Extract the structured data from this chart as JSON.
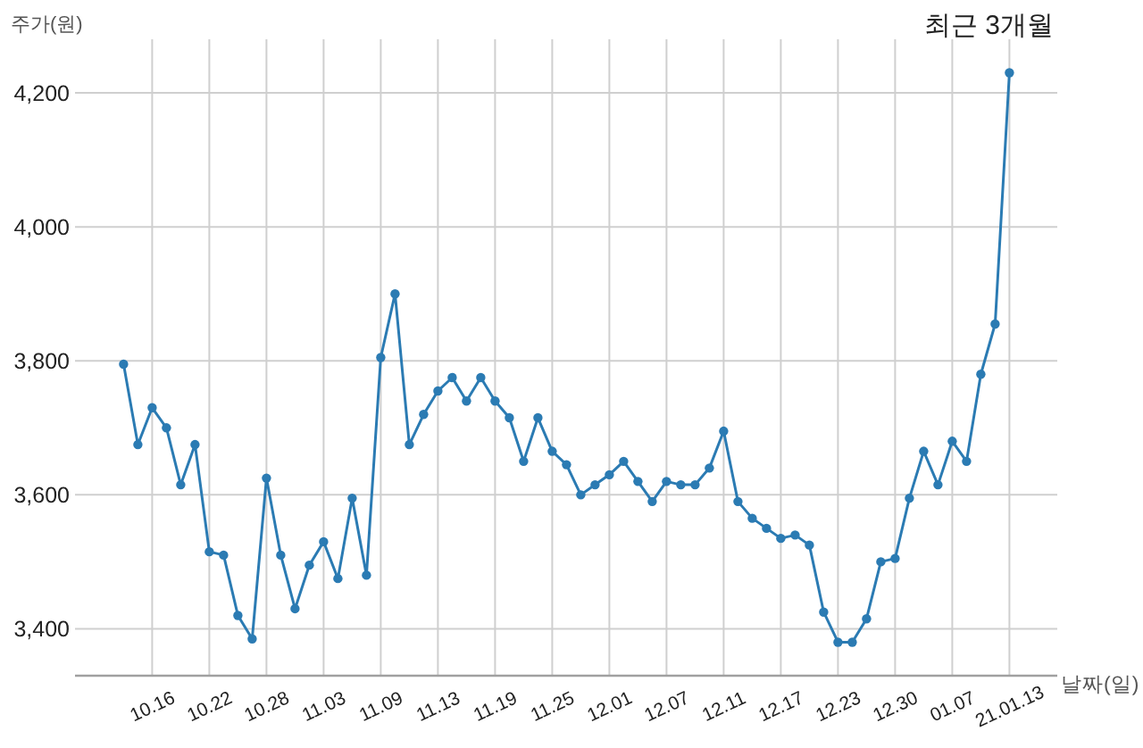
{
  "chart_data": {
    "type": "line",
    "title": "최근 3개월",
    "xlabel": "날짜(일)",
    "ylabel": "주가(원)",
    "categories": [
      null,
      null,
      "10.16",
      null,
      null,
      null,
      "10.22",
      null,
      null,
      null,
      "10.28",
      null,
      null,
      null,
      "11.03",
      null,
      null,
      null,
      "11.09",
      null,
      null,
      null,
      "11.13",
      null,
      null,
      null,
      "11.19",
      null,
      null,
      null,
      "11.25",
      null,
      null,
      null,
      "12.01",
      null,
      null,
      null,
      "12.07",
      null,
      null,
      null,
      "12.11",
      null,
      null,
      null,
      "12.17",
      null,
      null,
      null,
      "12.23",
      null,
      null,
      null,
      "12.30",
      null,
      null,
      null,
      "01.07",
      null,
      null,
      null,
      "21.01.13"
    ],
    "series": [
      {
        "color": "#2b7bb3",
        "values": [
          3795,
          3675,
          3730,
          3700,
          3615,
          3675,
          3515,
          3510,
          3420,
          3385,
          3625,
          3510,
          3430,
          3495,
          3530,
          3475,
          3595,
          3480,
          3805,
          3900,
          3675,
          3720,
          3755,
          3775,
          3740,
          3775,
          3740,
          3715,
          3650,
          3715,
          3665,
          3645,
          3600,
          3615,
          3630,
          3650,
          3620,
          3590,
          3620,
          3615,
          3615,
          3640,
          3695,
          3590,
          3565,
          3550,
          3535,
          3540,
          3525,
          3425,
          3380,
          3380,
          3415,
          3500,
          3505,
          3595,
          3665,
          3615,
          3680,
          3650,
          3780,
          3855,
          4230
        ]
      }
    ],
    "ylim": [
      3330,
      4280
    ],
    "yticks": [
      {
        "value": 3400,
        "label": "3,400"
      },
      {
        "value": 3600,
        "label": "3,600"
      },
      {
        "value": 3800,
        "label": "3,800"
      },
      {
        "value": 4000,
        "label": "4,000"
      },
      {
        "value": 4200,
        "label": "4,200"
      }
    ],
    "grid": true,
    "marker": "circle",
    "line_style": "solid"
  }
}
